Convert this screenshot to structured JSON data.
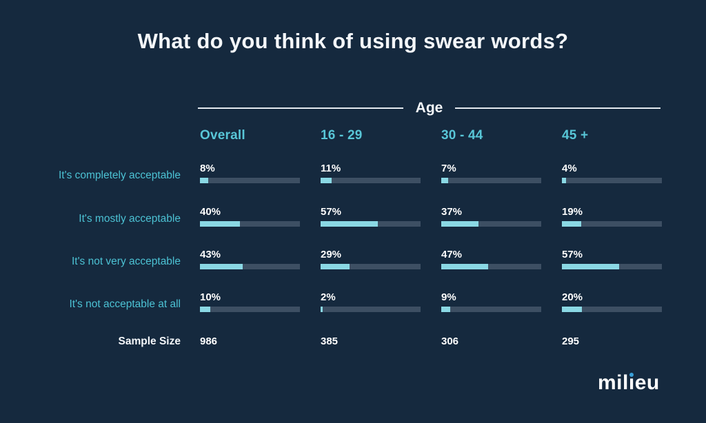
{
  "title": "What do you think of using swear words?",
  "age_group_label": "Age",
  "logo": {
    "text": "milieu",
    "part1": "mil",
    "dotless_i": "ı",
    "part2": "eu",
    "dot_color": "#3aa0d9"
  },
  "colors": {
    "background": "#15293e",
    "title_text": "#f4f7fa",
    "teal_text": "#4cc2d4",
    "column_header_text": "#58c6d7",
    "bar_fill": "#8ad8e4",
    "bar_track": "#3d4f63",
    "value_text": "#ffffff",
    "age_line": "#e4eaf0",
    "logo_dot": "#3aa0d9"
  },
  "chart_data": {
    "type": "bar",
    "orientation": "horizontal",
    "title": "What do you think of using swear words?",
    "group_label": "Age",
    "categories": [
      "It's completely acceptable",
      "It's mostly acceptable",
      "It's not very acceptable",
      "It's not acceptable at all"
    ],
    "series": [
      {
        "name": "Overall",
        "values": [
          8,
          40,
          43,
          10
        ],
        "sample_size": 986
      },
      {
        "name": "16 - 29",
        "values": [
          11,
          57,
          29,
          2
        ],
        "sample_size": 385
      },
      {
        "name": "30 - 44",
        "values": [
          7,
          37,
          47,
          9
        ],
        "sample_size": 306
      },
      {
        "name": "45 +",
        "values": [
          4,
          19,
          57,
          20
        ],
        "sample_size": 295
      }
    ],
    "sample_size_label": "Sample Size",
    "value_format": "percent",
    "value_range": [
      0,
      100
    ],
    "legend_position": "top",
    "grid": false
  }
}
